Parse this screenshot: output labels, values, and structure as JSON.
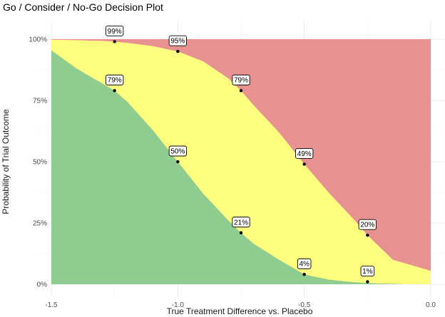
{
  "chart_data": {
    "type": "area",
    "title": "Go / Consider / No-Go Decision Plot",
    "xlabel": "True Treatment Difference vs. Placebo",
    "ylabel": "Probability of Trial Outcome",
    "xlim": [
      -1.5,
      0.0
    ],
    "ylim": [
      0,
      1
    ],
    "x_ticks": [
      -1.5,
      -1.0,
      -0.5,
      0.0
    ],
    "x_tick_labels": [
      "-1.5",
      "-1.0",
      "-0.5",
      "0.0"
    ],
    "y_ticks": [
      0,
      0.25,
      0.5,
      0.75,
      1.0
    ],
    "y_tick_labels": [
      "0%",
      "25%",
      "50%",
      "75%",
      "100%"
    ],
    "grid": true,
    "x": [
      -1.5,
      -1.4,
      -1.3,
      -1.25,
      -1.2,
      -1.1,
      -1.0,
      -0.9,
      -0.8,
      -0.75,
      -0.7,
      -0.6,
      -0.5,
      -0.4,
      -0.3,
      -0.25,
      -0.2,
      -0.15,
      -0.1,
      0.0
    ],
    "series": [
      {
        "color": "#8fcc8f",
        "values": [
          0.955,
          0.88,
          0.82,
          0.79,
          0.745,
          0.63,
          0.5,
          0.37,
          0.26,
          0.21,
          0.165,
          0.1,
          0.04,
          0.018,
          0.008,
          0.005,
          0.003,
          0.002,
          0.0,
          0.0
        ]
      },
      {
        "color": "#ffff7f",
        "values": [
          0.998,
          0.996,
          0.993,
          0.99,
          0.985,
          0.972,
          0.95,
          0.91,
          0.84,
          0.79,
          0.73,
          0.62,
          0.49,
          0.37,
          0.26,
          0.2,
          0.15,
          0.1,
          0.085,
          0.055
        ]
      },
      {
        "color": "#e89191",
        "values": [
          1,
          1,
          1,
          1,
          1,
          1,
          1,
          1,
          1,
          1,
          1,
          1,
          1,
          1,
          1,
          1,
          1,
          1,
          1,
          1
        ]
      }
    ],
    "points": [
      {
        "x": -1.25,
        "y": 0.99,
        "label": "99%"
      },
      {
        "x": -1.0,
        "y": 0.95,
        "label": "95%"
      },
      {
        "x": -0.75,
        "y": 0.79,
        "label": "79%"
      },
      {
        "x": -0.5,
        "y": 0.49,
        "label": "49%"
      },
      {
        "x": -0.25,
        "y": 0.2,
        "label": "20%"
      },
      {
        "x": -1.25,
        "y": 0.79,
        "label": "79%"
      },
      {
        "x": -1.0,
        "y": 0.5,
        "label": "50%"
      },
      {
        "x": -0.75,
        "y": 0.21,
        "label": "21%"
      },
      {
        "x": -0.5,
        "y": 0.04,
        "label": "4%"
      },
      {
        "x": -0.25,
        "y": 0.01,
        "label": "1%"
      }
    ]
  }
}
